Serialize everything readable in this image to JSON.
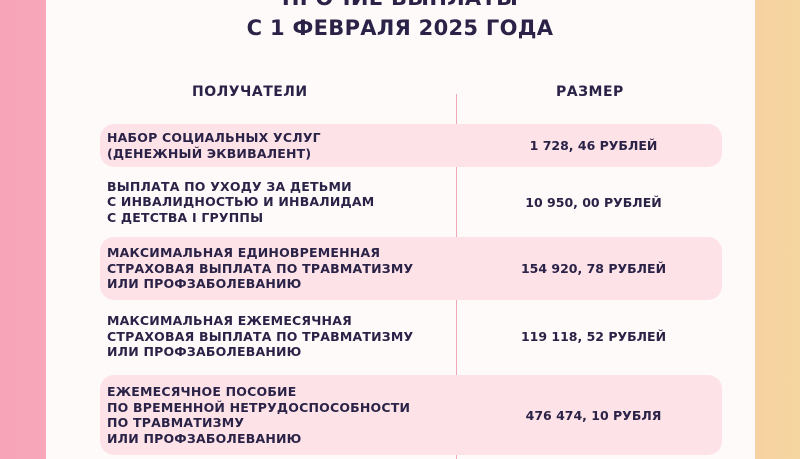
{
  "header": {
    "title_lines": [
      "ПРОЧИЕ ВЫПЛАТЫ",
      "С 1 ФЕВРАЛЯ 2025 ГОДА"
    ]
  },
  "table": {
    "columns": [
      "ПОЛУЧАТЕЛИ",
      "РАЗМЕР"
    ],
    "rows": [
      {
        "recipient": [
          "НАБОР СОЦИАЛЬНЫХ УСЛУГ",
          "(ДЕНЕЖНЫЙ ЭКВИВАЛЕНТ)"
        ],
        "amount": "1 728, 46 РУБЛЕЙ"
      },
      {
        "recipient": [
          "ВЫПЛАТА ПО УХОДУ ЗА ДЕТЬМИ",
          "С ИНВАЛИДНОСТЬЮ И ИНВАЛИДАМ",
          "С ДЕТСТВА I ГРУППЫ"
        ],
        "amount": "10 950, 00 РУБЛЕЙ"
      },
      {
        "recipient": [
          "МАКСИМАЛЬНАЯ ЕДИНОВРЕМЕННАЯ",
          "СТРАХОВАЯ ВЫПЛАТА ПО ТРАВМАТИЗМУ",
          "ИЛИ ПРОФЗАБОЛЕВАНИЮ"
        ],
        "amount": "154 920, 78 РУБЛЕЙ"
      },
      {
        "recipient": [
          "МАКСИМАЛЬНАЯ ЕЖЕМЕСЯЧНАЯ",
          "СТРАХОВАЯ ВЫПЛАТА ПО ТРАВМАТИЗМУ",
          "ИЛИ ПРОФЗАБОЛЕВАНИЮ"
        ],
        "amount": "119 118, 52 РУБЛЕЙ"
      },
      {
        "recipient": [
          "ЕЖЕМЕСЯЧНОЕ ПОСОБИЕ",
          "ПО ВРЕМЕННОЙ НЕТРУДОСПОСОБНОСТИ",
          "ПО ТРАВМАТИЗМУ",
          "ИЛИ ПРОФЗАБОЛЕВАНИЮ"
        ],
        "amount": "476 474, 10 РУБЛЯ"
      }
    ]
  }
}
